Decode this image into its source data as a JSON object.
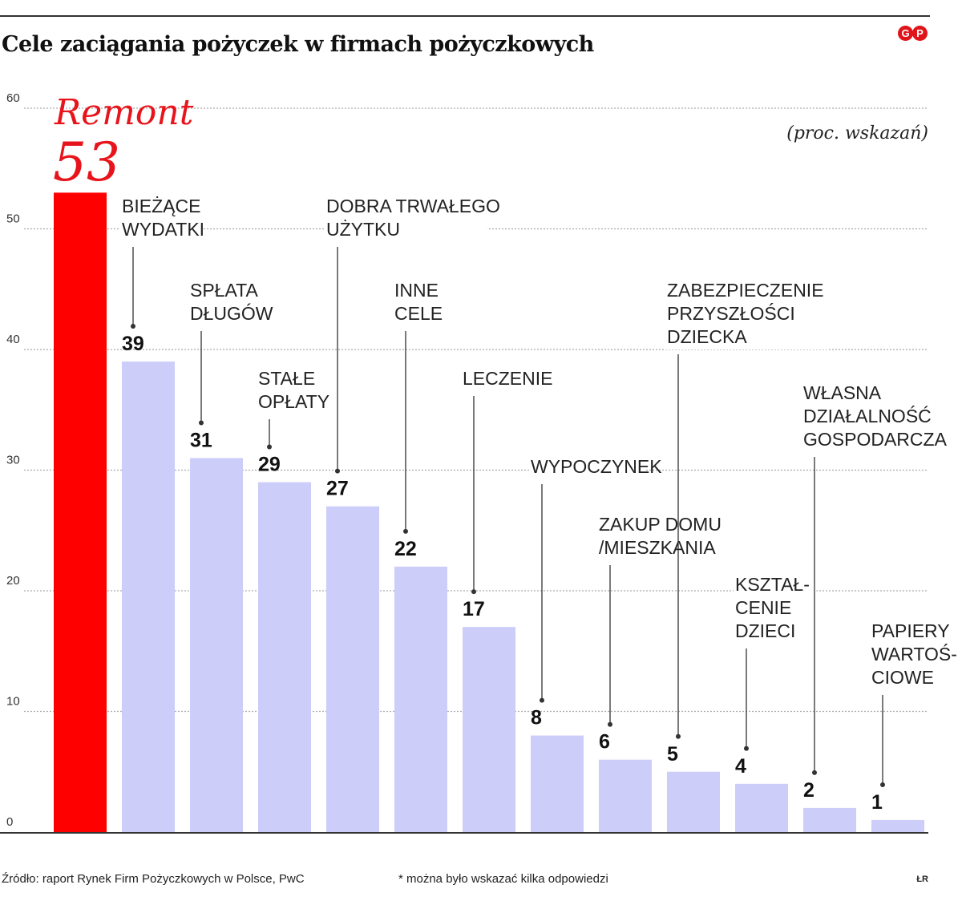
{
  "title": "Cele zaciągania pożyczek w firmach pożyczkowych",
  "unit_note": "(proc. wskazań)",
  "logo_text": "GP",
  "source": "Źródło: raport Rynek Firm Pożyczkowych w Polsce, PwC",
  "footnote": "* można było wskazać kilka odpowiedzi",
  "author": "ŁR",
  "colors": {
    "highlight": "#ff0000",
    "bar": "#cccdf9",
    "highlight_text": "#e8141c",
    "grid": "#aaaaaa",
    "text": "#1a1a1a"
  },
  "chart_data": {
    "type": "bar",
    "ylim": [
      0,
      60
    ],
    "yticks": [
      "0",
      "10",
      "20",
      "30",
      "40",
      "50",
      "60"
    ],
    "grid": true,
    "highlight": {
      "name": "Remont",
      "value_label": "53"
    },
    "categories": [
      "Remont",
      [
        "BIEŻĄCE",
        "WYDATKI"
      ],
      [
        "SPŁATA",
        "DŁUGÓW"
      ],
      [
        "STAŁE",
        "OPŁATY"
      ],
      [
        "DOBRA TRWAŁEGO",
        "UŻYTKU"
      ],
      [
        "INNE",
        "CELE"
      ],
      [
        "LECZENIE"
      ],
      [
        "WYPOCZYNEK"
      ],
      [
        "ZAKUP DOMU",
        "/MIESZKANIA"
      ],
      [
        "ZABEZPIECZENIE",
        "PRZYSZŁOŚCI",
        "DZIECKA"
      ],
      [
        "KSZTAŁ-",
        "CENIE",
        "DZIECI"
      ],
      [
        "WŁASNA",
        "DZIAŁALNOŚĆ",
        "GOSPODARCZA"
      ],
      [
        "PAPIERY",
        "WARTOŚ-",
        "CIOWE"
      ]
    ],
    "values": [
      53,
      39,
      31,
      29,
      27,
      22,
      17,
      8,
      6,
      5,
      4,
      2,
      1
    ]
  }
}
